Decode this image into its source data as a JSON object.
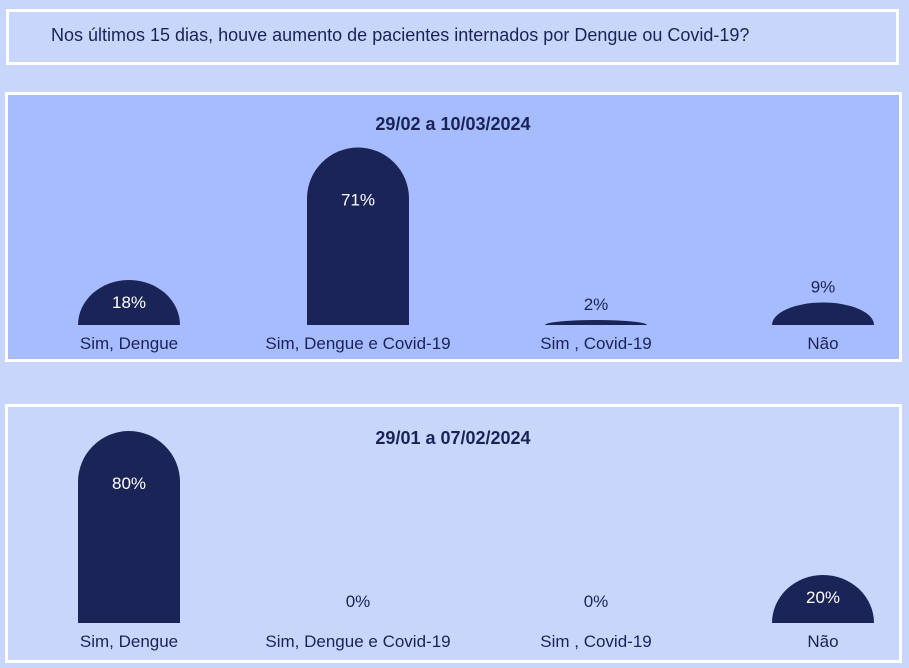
{
  "question": "Nos últimos 15 dias, houve aumento de pacientes internados por Dengue ou Covid-19?",
  "colors": {
    "bar": "#1b2457",
    "panel_top": "#a6bcfe",
    "panel_bottom": "#c9d6fb",
    "text": "#1b2356"
  },
  "chart_data": [
    {
      "type": "bar",
      "title": "29/02 a 10/03/2024",
      "categories": [
        "Sim, Dengue",
        "Sim, Dengue e Covid-19",
        "Sim , Covid-19",
        "Não"
      ],
      "values": [
        18,
        71,
        2,
        9
      ],
      "value_labels": [
        "18%",
        "71%",
        "2%",
        "9%"
      ],
      "ylim": [
        0,
        100
      ],
      "grid": false,
      "legend": "none"
    },
    {
      "type": "bar",
      "title": "29/01 a 07/02/2024",
      "categories": [
        "Sim, Dengue",
        "Sim, Dengue e Covid-19",
        "Sim , Covid-19",
        "Não"
      ],
      "values": [
        80,
        0,
        0,
        20
      ],
      "value_labels": [
        "80%",
        "0%",
        "0%",
        "20%"
      ],
      "ylim": [
        0,
        100
      ],
      "grid": false,
      "legend": "none"
    }
  ]
}
